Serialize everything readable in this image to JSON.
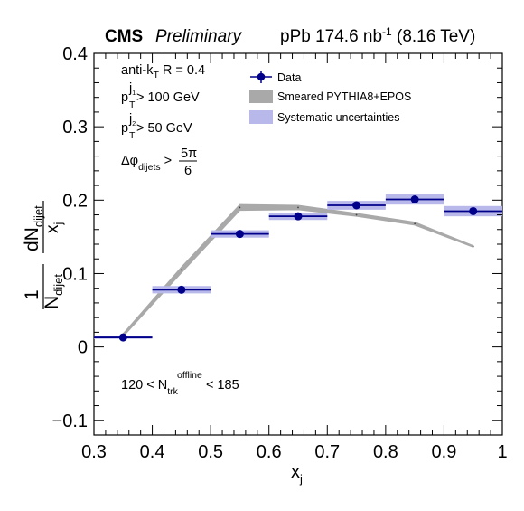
{
  "header": {
    "experiment": "CMS",
    "status": "Preliminary",
    "luminosity_prefix": "pPb 174.6 nb",
    "luminosity_exponent": "-1",
    "energy": "(8.16 TeV)"
  },
  "annotations": {
    "jet_algo_prefix": "anti-k",
    "jet_algo_sub": "T",
    "jet_algo_rest": " R = 0.4",
    "pt1_main": "p",
    "pt1_sup": "j",
    "pt1_supsub": "1",
    "pt1_sub": "T",
    "pt1_rest": " > 100 GeV",
    "pt2_main": "p",
    "pt2_sup": "j",
    "pt2_supsub": "2",
    "pt2_sub": "T",
    "pt2_rest": " > 50 GeV",
    "dphi_main": "Δφ",
    "dphi_sub": "dijets",
    "dphi_gt": " > ",
    "dphi_num": "5π",
    "dphi_den": "6",
    "mult_prefix": "120 < N",
    "mult_sup": "offline",
    "mult_sub": "trk",
    "mult_rest": " < 185"
  },
  "legend": {
    "data": "Data",
    "model": "Smeared PYTHIA8+EPOS",
    "syst": "Systematic uncertainties"
  },
  "axes": {
    "x_title_main": "x",
    "x_title_sub": "j",
    "y_title_one": "1",
    "y_title_N": "N",
    "y_title_N_sub": "dijet",
    "y_title_dN": "dN",
    "y_title_dN_sub": "dijet",
    "y_title_x": "x",
    "y_title_x_sub": "j"
  },
  "colors": {
    "data": "#00008b",
    "syst_band": "#b8b8ea",
    "model_band": "#a9a9a9"
  },
  "chart_data": {
    "type": "scatter",
    "xlim": [
      0.3,
      1.0
    ],
    "ylim": [
      -0.12,
      0.4
    ],
    "x_ticks": [
      "0.3",
      "0.4",
      "0.5",
      "0.6",
      "0.7",
      "0.8",
      "0.9",
      "1"
    ],
    "y_ticks": [
      "−0.1",
      "0",
      "0.1",
      "0.2",
      "0.3",
      "0.4"
    ],
    "x_tick_values": [
      0.3,
      0.4,
      0.5,
      0.6,
      0.7,
      0.8,
      0.9,
      1.0
    ],
    "y_tick_values": [
      -0.1,
      0,
      0.1,
      0.2,
      0.3,
      0.4
    ],
    "grid": false,
    "legend_position": "top-right",
    "series": [
      {
        "name": "Data",
        "x": [
          0.35,
          0.45,
          0.55,
          0.65,
          0.75,
          0.85,
          0.95
        ],
        "xerr": [
          0.05,
          0.05,
          0.05,
          0.05,
          0.05,
          0.05,
          0.05
        ],
        "y": [
          0.013,
          0.078,
          0.154,
          0.178,
          0.193,
          0.201,
          0.185
        ],
        "syst": [
          0.002,
          0.005,
          0.005,
          0.005,
          0.006,
          0.007,
          0.007
        ]
      },
      {
        "name": "Smeared PYTHIA8+EPOS",
        "x": [
          0.35,
          0.45,
          0.55,
          0.65,
          0.75,
          0.85,
          0.95
        ],
        "y": [
          0.016,
          0.105,
          0.19,
          0.19,
          0.18,
          0.168,
          0.137
        ],
        "band": [
          0.002,
          0.004,
          0.004,
          0.003,
          0.002,
          0.002,
          0.001
        ]
      }
    ]
  }
}
